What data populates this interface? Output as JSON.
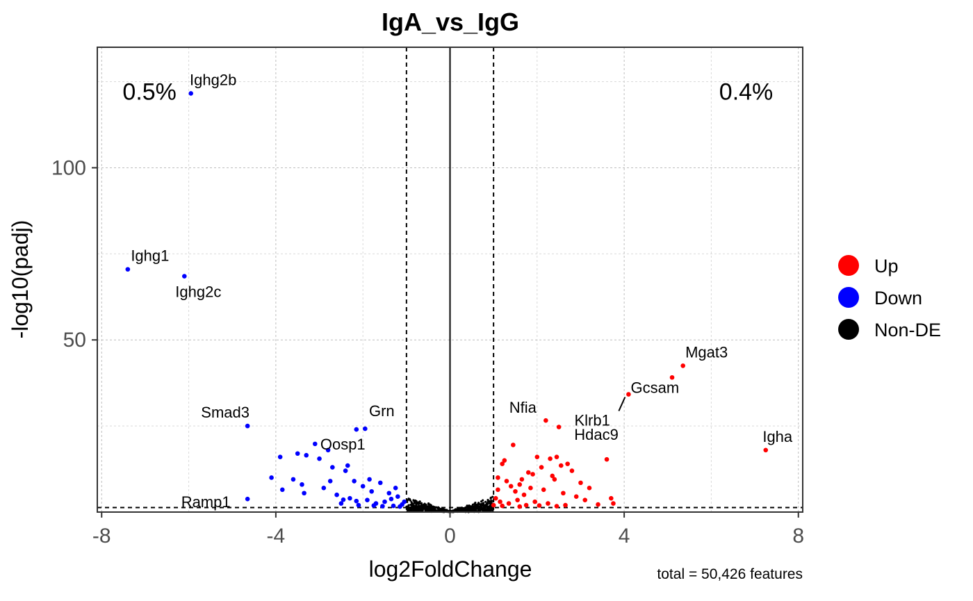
{
  "chart_data": {
    "type": "scatter",
    "title": "IgA_vs_IgG",
    "xlabel": "log2FoldChange",
    "ylabel": "-log10(padj)",
    "xlim": [
      -8.1,
      8.1
    ],
    "ylim": [
      0,
      135
    ],
    "x_ticks": [
      -8,
      -4,
      0,
      4,
      8
    ],
    "y_ticks": [
      50,
      100
    ],
    "grid": true,
    "fold_change_threshold": 1,
    "padj_line_y": 1.3,
    "caption": "total = 50,426 features",
    "percent_labels": [
      {
        "text": "0.5%",
        "x": -6.9,
        "y": 122
      },
      {
        "text": "0.4%",
        "x": 6.8,
        "y": 122
      }
    ],
    "legend": {
      "placement": "right",
      "entries": [
        {
          "label": "Up",
          "color": "#ff0000"
        },
        {
          "label": "Down",
          "color": "#0000ff"
        },
        {
          "label": "Non-DE",
          "color": "#000000"
        }
      ]
    },
    "colors": {
      "up": "#ff0000",
      "down": "#0000ff",
      "nonde": "#000000"
    },
    "series": [
      {
        "name": "Up",
        "color": "#ff0000",
        "points": [
          [
            2.2,
            26.6
          ],
          [
            2.5,
            24.7
          ],
          [
            1.45,
            19.5
          ],
          [
            3.6,
            15.3
          ],
          [
            5.1,
            39.1
          ],
          [
            5.35,
            42.5
          ],
          [
            4.1,
            34.2
          ],
          [
            7.25,
            18.0
          ],
          [
            1.1,
            10.0
          ],
          [
            1.3,
            9.0
          ],
          [
            1.6,
            8.0
          ],
          [
            1.9,
            11.0
          ],
          [
            2.1,
            13.0
          ],
          [
            2.4,
            9.5
          ],
          [
            2.7,
            14.0
          ],
          [
            3.0,
            8.5
          ],
          [
            3.2,
            7.0
          ],
          [
            3.7,
            4.0
          ],
          [
            3.75,
            2.5
          ],
          [
            2.0,
            16.0
          ],
          [
            2.3,
            15.5
          ],
          [
            2.45,
            16.0
          ],
          [
            1.2,
            14.0
          ],
          [
            1.25,
            15.0
          ],
          [
            2.8,
            12.0
          ],
          [
            2.55,
            13.5
          ],
          [
            1.5,
            6.0
          ],
          [
            1.7,
            5.0
          ],
          [
            1.85,
            7.0
          ],
          [
            2.15,
            6.5
          ],
          [
            2.6,
            5.5
          ],
          [
            2.9,
            4.5
          ],
          [
            3.1,
            3.5
          ],
          [
            1.05,
            4.0
          ],
          [
            1.15,
            3.0
          ],
          [
            1.35,
            2.5
          ],
          [
            1.55,
            3.5
          ],
          [
            1.75,
            2.0
          ],
          [
            1.95,
            3.0
          ],
          [
            2.25,
            2.5
          ],
          [
            2.65,
            2.0
          ],
          [
            1.1,
            6.5
          ],
          [
            1.4,
            7.5
          ],
          [
            1.65,
            9.5
          ],
          [
            1.8,
            11.5
          ],
          [
            2.35,
            10.5
          ],
          [
            1.0,
            2.0
          ],
          [
            1.2,
            1.8
          ],
          [
            1.6,
            1.6
          ],
          [
            2.05,
            1.9
          ],
          [
            2.45,
            1.7
          ],
          [
            3.4,
            2.2
          ]
        ],
        "labels": [
          {
            "text": "Nfia",
            "x": 2.2,
            "y": 26.6
          },
          {
            "text": "Klrb1",
            "x": 2.5,
            "y": 24.7
          },
          {
            "text": "Hdac9",
            "x": 3.6,
            "y": 15.3
          },
          {
            "text": "Gcsam",
            "x": 4.1,
            "y": 34.2
          },
          {
            "text": "Mgat3",
            "x": 5.35,
            "y": 42.5
          },
          {
            "text": "Igha",
            "x": 7.25,
            "y": 18.0
          }
        ]
      },
      {
        "name": "Down",
        "color": "#0000ff",
        "points": [
          [
            -5.95,
            121.6
          ],
          [
            -7.4,
            70.5
          ],
          [
            -6.1,
            68.5
          ],
          [
            -4.65,
            25.0
          ],
          [
            -4.65,
            3.8
          ],
          [
            -3.1,
            19.8
          ],
          [
            -2.15,
            24.0
          ],
          [
            -1.95,
            24.2
          ],
          [
            -3.9,
            16.0
          ],
          [
            -3.5,
            17.0
          ],
          [
            -3.3,
            16.5
          ],
          [
            -2.8,
            18.0
          ],
          [
            -3.0,
            15.5
          ],
          [
            -2.7,
            13.0
          ],
          [
            -4.1,
            10.0
          ],
          [
            -3.85,
            6.5
          ],
          [
            -3.35,
            5.5
          ],
          [
            -3.4,
            8.0
          ],
          [
            -2.9,
            7.0
          ],
          [
            -2.4,
            12.0
          ],
          [
            -2.2,
            9.0
          ],
          [
            -2.6,
            5.0
          ],
          [
            -2.3,
            4.0
          ],
          [
            -2.0,
            7.5
          ],
          [
            -1.8,
            6.0
          ],
          [
            -1.6,
            8.5
          ],
          [
            -1.4,
            5.5
          ],
          [
            -1.2,
            4.5
          ],
          [
            -1.5,
            3.0
          ],
          [
            -1.7,
            2.5
          ],
          [
            -1.9,
            3.5
          ],
          [
            -2.1,
            2.0
          ],
          [
            -2.5,
            2.5
          ],
          [
            -1.1,
            2.2
          ],
          [
            -1.3,
            1.8
          ],
          [
            -3.6,
            9.5
          ],
          [
            -2.35,
            13.5
          ],
          [
            -1.85,
            9.5
          ],
          [
            -1.25,
            7.0
          ],
          [
            -2.75,
            9.0
          ],
          [
            -1.05,
            3.0
          ],
          [
            -1.35,
            3.8
          ],
          [
            -1.15,
            1.6
          ],
          [
            -1.55,
            1.7
          ],
          [
            -1.75,
            1.9
          ],
          [
            -2.15,
            3.2
          ],
          [
            -2.45,
            3.6
          ]
        ],
        "labels": [
          {
            "text": "Ighg2b",
            "x": -5.95,
            "y": 121.6
          },
          {
            "text": "Ighg1",
            "x": -7.4,
            "y": 70.5
          },
          {
            "text": "Ighg2c",
            "x": -6.1,
            "y": 68.5
          },
          {
            "text": "Smad3",
            "x": -4.65,
            "y": 25.0
          },
          {
            "text": "Oosp1",
            "x": -3.1,
            "y": 19.8
          },
          {
            "text": "Grn",
            "x": -1.95,
            "y": 24.2
          },
          {
            "text": "Ramp1",
            "x": -4.65,
            "y": 3.8
          }
        ]
      },
      {
        "name": "Non-DE",
        "color": "#000000",
        "generator": "v-shaped cloud of non-significant features with |log2FoldChange| below 1"
      }
    ]
  }
}
